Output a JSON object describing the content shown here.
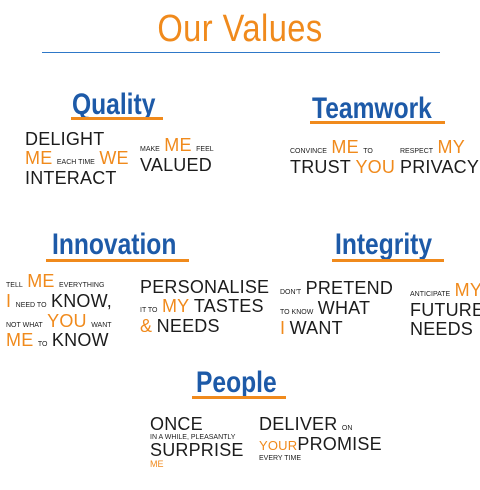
{
  "title": "Our Values",
  "quality": {
    "heading": "Quality",
    "a": {
      "l1": "DELIGHT",
      "l2a": "ME",
      "l2b": "EACH TIME",
      "l2c": "WE",
      "l3": "INTERACT"
    },
    "b": {
      "l1a": "MAKE",
      "l1b": "ME",
      "l1c": "FEEL",
      "l2": "VALUED"
    }
  },
  "teamwork": {
    "heading": "Teamwork",
    "a": {
      "l1a": "CONVINCE",
      "l1b": "ME",
      "l1c": "TO",
      "l2a": "TRUST",
      "l2b": "YOU"
    },
    "b": {
      "l1a": "RESPECT",
      "l1b": "MY",
      "l2": "PRIVACY"
    }
  },
  "innovation": {
    "heading": "Innovation",
    "a": {
      "l1a": "TELL",
      "l1b": "ME",
      "l1c": "EVERYTHING",
      "l2a": "I",
      "l2b": "NEED TO",
      "l2c": "KNOW,",
      "l3a": "NOT WHAT",
      "l3b": "YOU",
      "l3c": "WANT",
      "l4a": "ME",
      "l4b": "TO",
      "l4c": "KNOW"
    },
    "b": {
      "l1": "PERSONALISE",
      "l2a": "IT TO",
      "l2b": "MY",
      "l2c": "TASTES",
      "l3a": "&",
      "l3b": "NEEDS"
    }
  },
  "integrity": {
    "heading": "Integrity",
    "a": {
      "l1a": "DON'T",
      "l1b": "PRETEND",
      "l2a": "TO KNOW",
      "l2b": "WHAT",
      "l3a": "I",
      "l3b": "WANT"
    },
    "b": {
      "l1a": "ANTICIPATE",
      "l1b": "MY",
      "l2": "FUTURE",
      "l3": "NEEDS"
    }
  },
  "people": {
    "heading": "People",
    "a": {
      "l1": "ONCE",
      "l2": "IN A WHILE, PLEASANTLY",
      "l3": "SURPRISE",
      "l4": "ME"
    },
    "b": {
      "l1a": "DELIVER",
      "l1b": "ON",
      "l2a": "YOUR",
      "l2b": "PROMISE",
      "l3": "EVERY TIME"
    }
  }
}
